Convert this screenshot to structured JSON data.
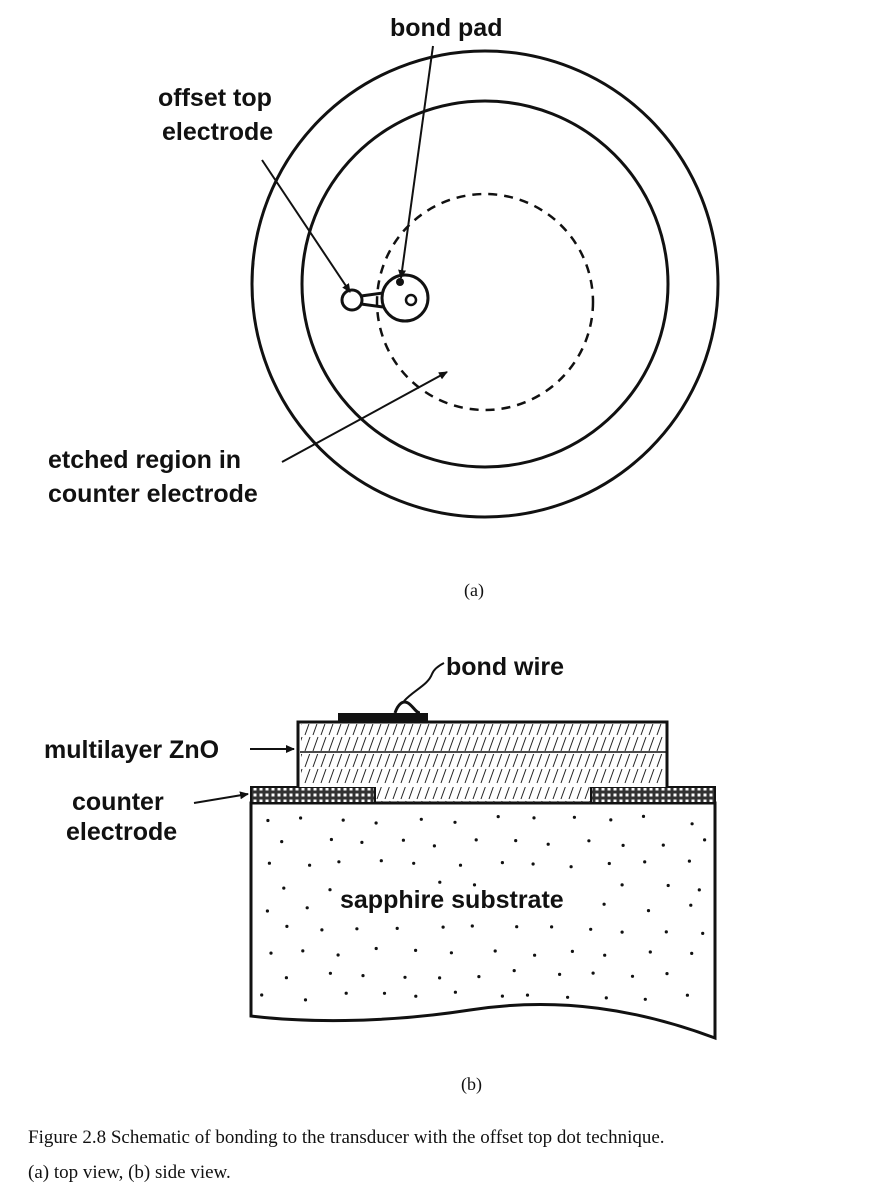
{
  "top_view": {
    "labels": {
      "bond_pad": "bond pad",
      "offset_top_line1": "offset top",
      "offset_top_line2": "electrode",
      "etched_line1": "etched region in",
      "etched_line2": "counter electrode"
    },
    "sublabel": "(a)"
  },
  "side_view": {
    "labels": {
      "bond_wire": "bond wire",
      "multilayer": "multilayer ZnO",
      "counter_line1": "counter",
      "counter_line2": "electrode",
      "substrate": "sapphire substrate"
    },
    "sublabel": "(b)"
  },
  "caption": {
    "line1": "Figure 2.8 Schematic of bonding to the transducer with the offset top dot technique.",
    "line2": "(a) top view, (b) side view."
  }
}
